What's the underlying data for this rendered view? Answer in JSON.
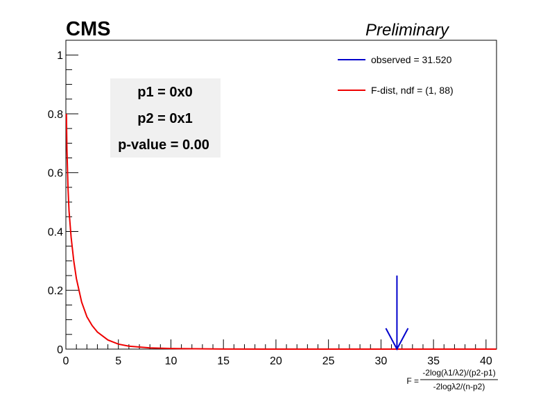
{
  "header": {
    "experiment": "CMS",
    "status": "Preliminary"
  },
  "info_box": {
    "line1": "p1 = 0x0",
    "line2": "p2 = 0x1",
    "line3": "p-value = 0.00"
  },
  "colors": {
    "observed": "#0000cc",
    "fdist": "#ee0000",
    "info_box_bg": "#f0f0f0"
  },
  "chart_data": {
    "type": "line",
    "title": "",
    "xlabel": {
      "prefix": "F =",
      "numerator": "-2log(λ1/λ2)/(p2-p1)",
      "denominator": "-2logλ2/(n-p2)"
    },
    "ylabel": "",
    "xlim": [
      0,
      41
    ],
    "ylim": [
      0,
      1.05
    ],
    "x_ticks": [
      "0",
      "5",
      "10",
      "15",
      "20",
      "25",
      "30",
      "35",
      "40"
    ],
    "y_ticks": [
      "0",
      "0.2",
      "0.4",
      "0.6",
      "0.8",
      "1"
    ],
    "x_tick_values": [
      0,
      5,
      10,
      15,
      20,
      25,
      30,
      35,
      40
    ],
    "y_tick_values": [
      0,
      0.2,
      0.4,
      0.6,
      0.8,
      1
    ],
    "series": [
      {
        "name": "F-dist, ndf = (1, 88)",
        "kind": "f-distribution",
        "df1": 1,
        "df2": 88,
        "x": [
          0.05,
          0.1,
          0.2,
          0.3,
          0.5,
          0.75,
          1,
          1.5,
          2,
          2.5,
          3,
          4,
          5,
          6,
          8,
          10,
          15,
          20,
          41
        ],
        "y": [
          0.8,
          0.68,
          0.55,
          0.47,
          0.38,
          0.3,
          0.24,
          0.16,
          0.11,
          0.08,
          0.058,
          0.031,
          0.017,
          0.01,
          0.004,
          0.002,
          0.0002,
          2e-05,
          0
        ]
      }
    ],
    "observed": {
      "label": "observed = 31.520",
      "value": 31.52,
      "arrow_top": 0.25
    },
    "legend": {
      "placement": "top-right",
      "entries": [
        "observed = 31.520",
        "F-dist, ndf = (1, 88)"
      ]
    },
    "grid": false
  }
}
